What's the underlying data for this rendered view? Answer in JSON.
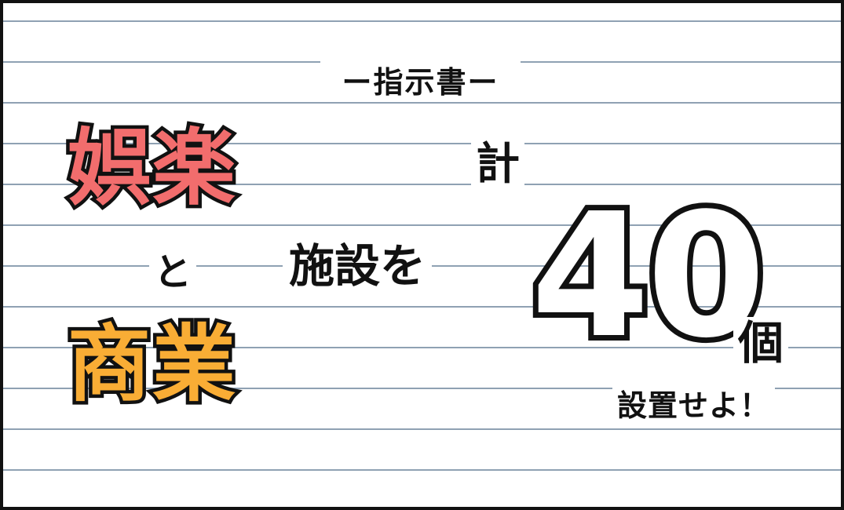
{
  "heading": "ー指示書ー",
  "words": {
    "entertainment": "娯楽",
    "and": "と",
    "commerce": "商業"
  },
  "facility_text": "施設を",
  "total_label": "計",
  "count": "40",
  "unit": "個",
  "instruction": "設置せよ！",
  "colors": {
    "entertainment": "#f26d6d",
    "commerce": "#f9ad35",
    "rule_lines": "#8fa1b3",
    "outline": "#111111"
  }
}
